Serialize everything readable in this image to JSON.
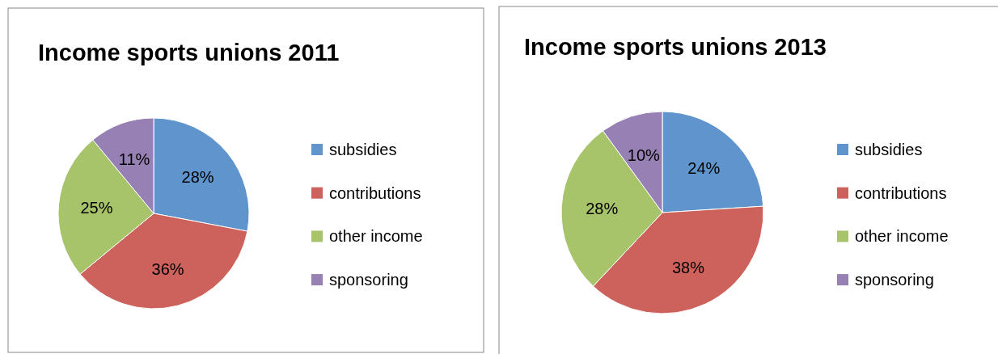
{
  "chart_data": [
    {
      "type": "pie",
      "title": "Income sports unions 2011",
      "categories": [
        "subsidies",
        "contributions",
        "other income",
        "sponsoring"
      ],
      "values": [
        28,
        36,
        25,
        11
      ],
      "value_labels": [
        "28%",
        "36%",
        "25%",
        "11%"
      ],
      "colors": [
        "#5f95cc",
        "#cd625c",
        "#a8c46a",
        "#9680b4"
      ],
      "legend": "right"
    },
    {
      "type": "pie",
      "title": "Income sports unions 2013",
      "categories": [
        "subsidies",
        "contributions",
        "other income",
        "sponsoring"
      ],
      "values": [
        24,
        38,
        28,
        10
      ],
      "value_labels": [
        "24%",
        "38%",
        "28%",
        "10%"
      ],
      "colors": [
        "#5f95cc",
        "#cd625c",
        "#a8c46a",
        "#9680b4"
      ],
      "legend": "right"
    }
  ]
}
